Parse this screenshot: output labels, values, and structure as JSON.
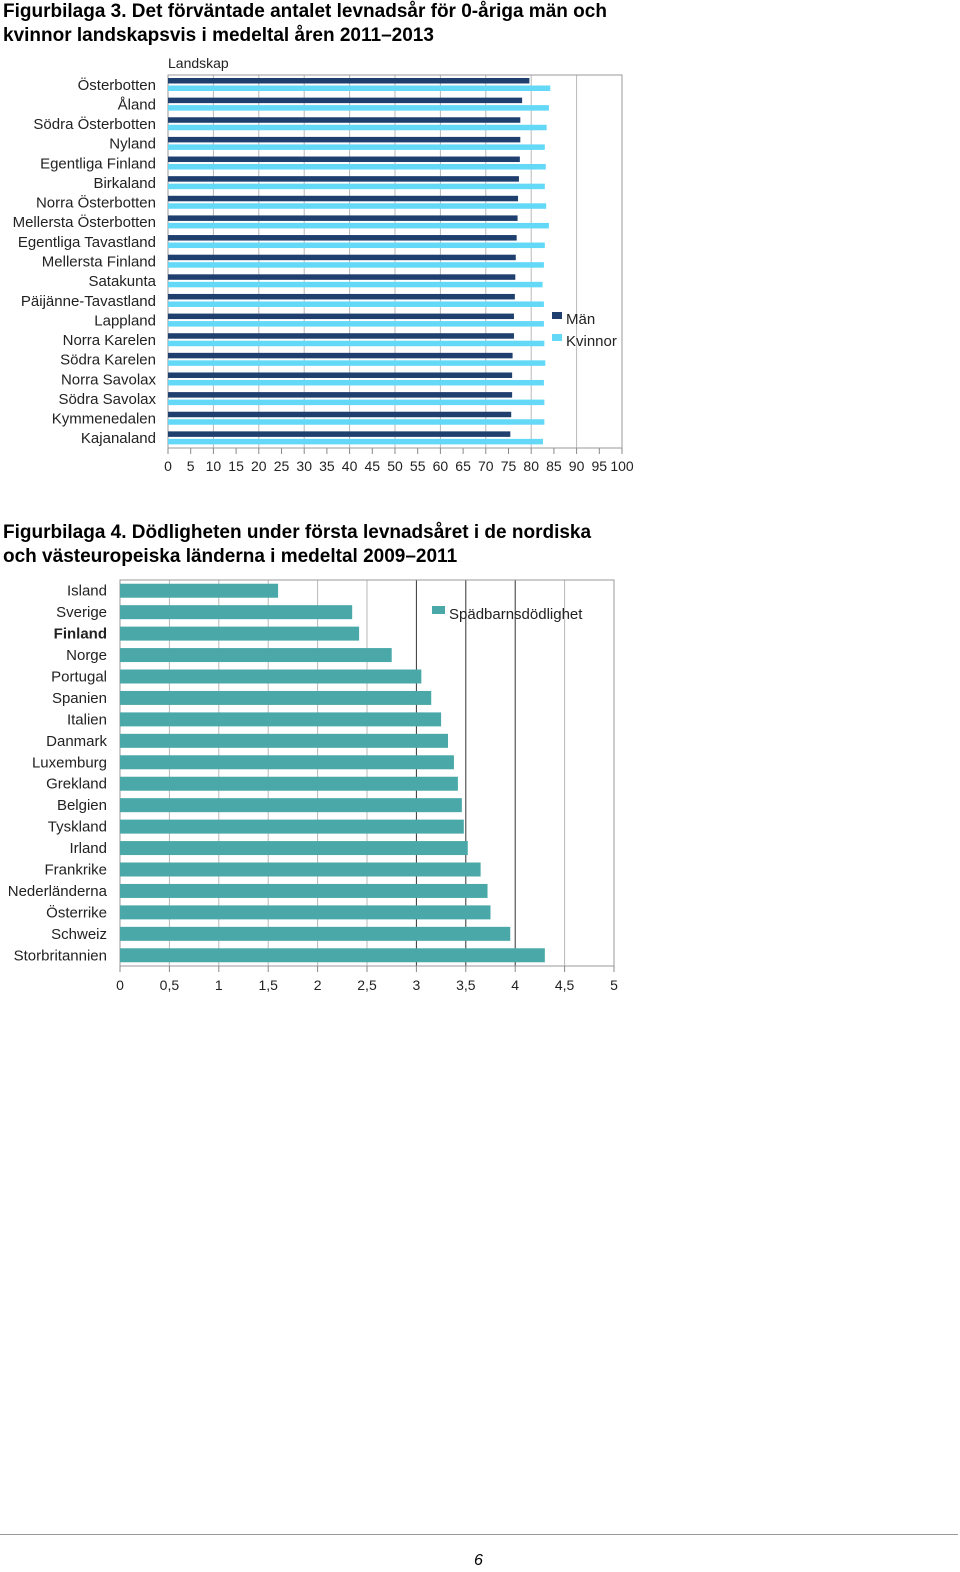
{
  "figure3": {
    "title_line1": "Figurbilaga 3. Det förväntade antalet levnadsår för 0-åriga män och",
    "title_line2": "kvinnor landskapsvis i medeltal åren 2011–2013"
  },
  "figure4": {
    "title_line1": "Figurbilaga 4. Dödligheten under första levnadsåret i de nordiska",
    "title_line2": "och västeuropeiska länderna i medeltal 2009–2011"
  },
  "chart_data": [
    {
      "type": "bar",
      "orientation": "horizontal",
      "title": "Det förväntade antalet levnadsår för 0-åriga män och kvinnor landskapsvis i medeltal åren 2011–2013",
      "axis_title": "Landskap",
      "categories": [
        "Österbotten",
        "Åland",
        "Södra Österbotten",
        "Nyland",
        "Egentliga Finland",
        "Birkaland",
        "Norra Österbotten",
        "Mellersta Österbotten",
        "Egentliga Tavastland",
        "Mellersta Finland",
        "Satakunta",
        "Päijänne-Tavastland",
        "Lappland",
        "Norra Karelen",
        "Södra Karelen",
        "Norra Savolax",
        "Södra Savolax",
        "Kymmenedalen",
        "Kajanaland"
      ],
      "series": [
        {
          "name": "Män",
          "color": "#1f3f6e",
          "values": [
            79.6,
            78.0,
            77.6,
            77.6,
            77.5,
            77.3,
            77.1,
            77.0,
            76.8,
            76.6,
            76.5,
            76.4,
            76.2,
            76.2,
            75.9,
            75.8,
            75.8,
            75.6,
            75.4
          ]
        },
        {
          "name": "Kvinnor",
          "color": "#63d8f7",
          "values": [
            84.2,
            83.9,
            83.4,
            83.0,
            83.2,
            83.0,
            83.3,
            83.9,
            83.0,
            82.8,
            82.5,
            82.8,
            82.8,
            82.9,
            83.1,
            82.8,
            82.9,
            82.9,
            82.6
          ]
        }
      ],
      "xlim": [
        0,
        100
      ],
      "xticks": [
        "0",
        "5",
        "10",
        "15",
        "20",
        "25",
        "30",
        "35",
        "40",
        "45",
        "50",
        "55",
        "60",
        "65",
        "70",
        "75",
        "80",
        "85",
        "90",
        "95",
        "100"
      ],
      "legend_position": "right"
    },
    {
      "type": "bar",
      "orientation": "horizontal",
      "title": "Dödligheten under första levnadsåret i de nordiska och västeuropeiska länderna i medeltal 2009–2011",
      "categories": [
        "Island",
        "Sverige",
        "Finland",
        "Norge",
        "Portugal",
        "Spanien",
        "Italien",
        "Danmark",
        "Luxemburg",
        "Grekland",
        "Belgien",
        "Tyskland",
        "Irland",
        "Frankrike",
        "Nederländerna",
        "Österrike",
        "Schweiz",
        "Storbritannien"
      ],
      "highlight_category": "Finland",
      "series": [
        {
          "name": "Spädbarnsdödlighet",
          "color": "#4aa9a8",
          "values": [
            1.6,
            2.35,
            2.42,
            2.75,
            3.05,
            3.15,
            3.25,
            3.32,
            3.38,
            3.42,
            3.46,
            3.48,
            3.52,
            3.65,
            3.72,
            3.75,
            3.95,
            4.3
          ]
        }
      ],
      "xlim": [
        0,
        5
      ],
      "xticks": [
        "0",
        "0,5",
        "1",
        "1,5",
        "2",
        "2,5",
        "3",
        "3,5",
        "4",
        "4,5",
        "5"
      ],
      "legend_position": "top-right"
    }
  ],
  "footer": {
    "page_number": "6"
  }
}
